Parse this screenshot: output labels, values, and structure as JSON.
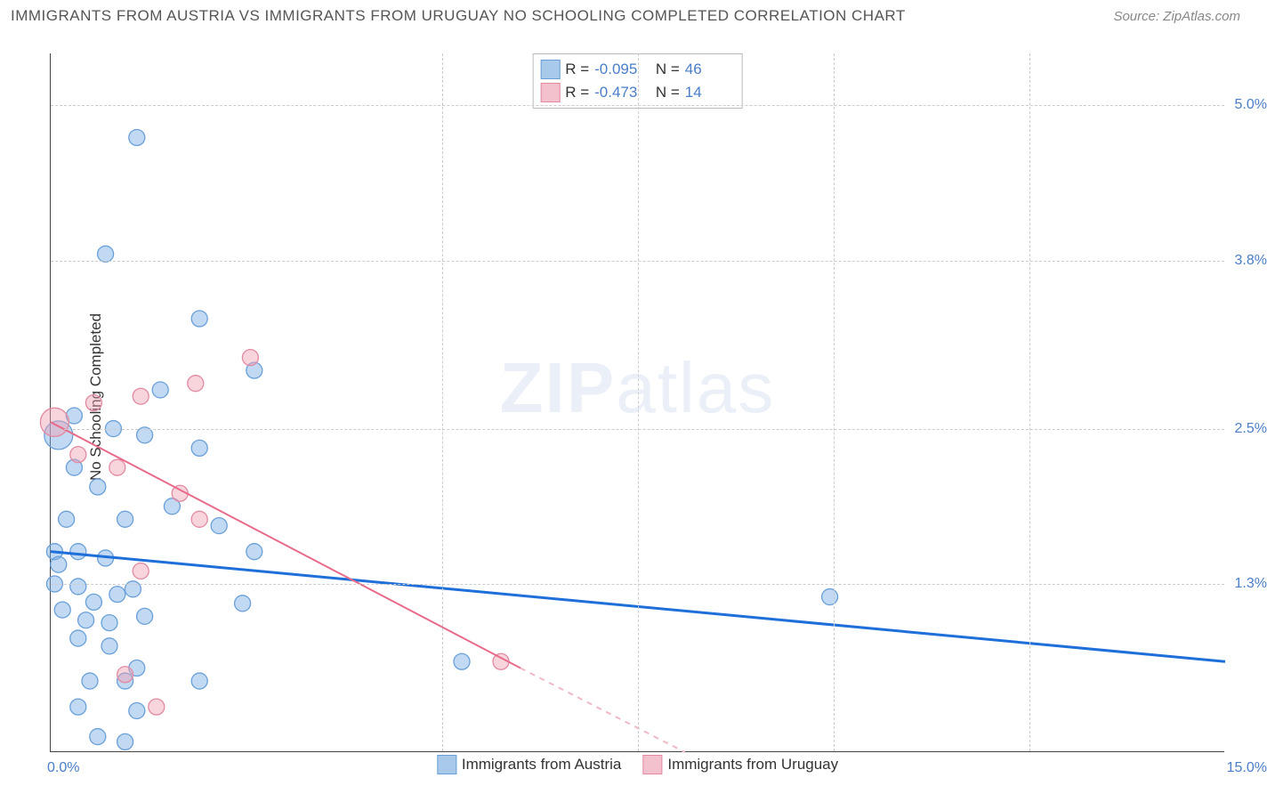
{
  "title": "IMMIGRANTS FROM AUSTRIA VS IMMIGRANTS FROM URUGUAY NO SCHOOLING COMPLETED CORRELATION CHART",
  "source": "Source: ZipAtlas.com",
  "y_axis_title": "No Schooling Completed",
  "watermark_bold": "ZIP",
  "watermark_rest": "atlas",
  "chart": {
    "type": "scatter",
    "xlim": [
      0.0,
      15.0
    ],
    "ylim": [
      0.0,
      5.4
    ],
    "x_ticks": [
      0.0,
      15.0
    ],
    "x_tick_labels": [
      "0.0%",
      "15.0%"
    ],
    "y_gridlines": [
      1.3,
      2.5,
      3.8,
      5.0
    ],
    "y_tick_labels": [
      "1.3%",
      "2.5%",
      "3.8%",
      "5.0%"
    ],
    "x_gridlines_pct": [
      33.3,
      50.0,
      66.7,
      83.3
    ],
    "background_color": "#ffffff",
    "grid_color": "#cccccc",
    "axis_color": "#444444",
    "tick_label_color": "#4a7ec9",
    "tick_fontsize": 16,
    "title_fontsize": 17,
    "title_color": "#555555"
  },
  "series": {
    "austria": {
      "label": "Immigrants from Austria",
      "color_fill": "rgba(120,170,230,0.45)",
      "color_stroke": "#6aa0d8",
      "swatch_fill": "#a9c9ea",
      "swatch_border": "#6aa0d8",
      "trend_color": "#1e6fd9",
      "trend_width": 3,
      "marker_radius": 9,
      "R_label": "R =",
      "R": "-0.095",
      "N_label": "N =",
      "N": "46",
      "trend": {
        "x1": 0.0,
        "y1": 1.55,
        "x2": 15.0,
        "y2": 0.7
      },
      "points": [
        {
          "x": 1.1,
          "y": 4.75
        },
        {
          "x": 0.7,
          "y": 3.85
        },
        {
          "x": 1.9,
          "y": 3.35
        },
        {
          "x": 2.6,
          "y": 2.95
        },
        {
          "x": 1.4,
          "y": 2.8
        },
        {
          "x": 0.3,
          "y": 2.6
        },
        {
          "x": 0.1,
          "y": 2.45,
          "r": 16
        },
        {
          "x": 0.8,
          "y": 2.5
        },
        {
          "x": 1.2,
          "y": 2.45
        },
        {
          "x": 1.9,
          "y": 2.35
        },
        {
          "x": 0.3,
          "y": 2.2
        },
        {
          "x": 0.6,
          "y": 2.05
        },
        {
          "x": 0.2,
          "y": 1.8
        },
        {
          "x": 0.95,
          "y": 1.8
        },
        {
          "x": 1.55,
          "y": 1.9
        },
        {
          "x": 2.15,
          "y": 1.75
        },
        {
          "x": 0.05,
          "y": 1.55
        },
        {
          "x": 0.1,
          "y": 1.45
        },
        {
          "x": 0.35,
          "y": 1.55
        },
        {
          "x": 0.7,
          "y": 1.5
        },
        {
          "x": 2.6,
          "y": 1.55
        },
        {
          "x": 0.05,
          "y": 1.3
        },
        {
          "x": 0.35,
          "y": 1.28
        },
        {
          "x": 0.55,
          "y": 1.16
        },
        {
          "x": 0.85,
          "y": 1.22
        },
        {
          "x": 1.05,
          "y": 1.26
        },
        {
          "x": 0.15,
          "y": 1.1
        },
        {
          "x": 0.45,
          "y": 1.02
        },
        {
          "x": 0.75,
          "y": 1.0
        },
        {
          "x": 1.2,
          "y": 1.05
        },
        {
          "x": 2.45,
          "y": 1.15
        },
        {
          "x": 9.95,
          "y": 1.2
        },
        {
          "x": 0.35,
          "y": 0.88
        },
        {
          "x": 0.75,
          "y": 0.82
        },
        {
          "x": 1.1,
          "y": 0.65
        },
        {
          "x": 0.5,
          "y": 0.55
        },
        {
          "x": 0.95,
          "y": 0.55
        },
        {
          "x": 1.9,
          "y": 0.55
        },
        {
          "x": 5.25,
          "y": 0.7
        },
        {
          "x": 0.35,
          "y": 0.35
        },
        {
          "x": 1.1,
          "y": 0.32
        },
        {
          "x": 0.6,
          "y": 0.12
        },
        {
          "x": 0.95,
          "y": 0.08
        }
      ]
    },
    "uruguay": {
      "label": "Immigrants from Uruguay",
      "color_fill": "rgba(240,160,180,0.45)",
      "color_stroke": "#e28aa0",
      "swatch_fill": "#f3c1cd",
      "swatch_border": "#e28aa0",
      "trend_color": "#e86b8a",
      "trend_width": 2,
      "trend_dash_color": "#f0b8c4",
      "marker_radius": 9,
      "R_label": "R =",
      "R": "-0.473",
      "N_label": "N =",
      "N": "14",
      "trend_solid": {
        "x1": 0.0,
        "y1": 2.55,
        "x2": 6.0,
        "y2": 0.65
      },
      "trend_dash": {
        "x1": 6.0,
        "y1": 0.65,
        "x2": 8.1,
        "y2": 0.0
      },
      "points": [
        {
          "x": 2.55,
          "y": 3.05
        },
        {
          "x": 1.85,
          "y": 2.85
        },
        {
          "x": 1.15,
          "y": 2.75
        },
        {
          "x": 0.55,
          "y": 2.7
        },
        {
          "x": 0.05,
          "y": 2.55,
          "r": 16
        },
        {
          "x": 0.35,
          "y": 2.3
        },
        {
          "x": 0.85,
          "y": 2.2
        },
        {
          "x": 1.65,
          "y": 2.0
        },
        {
          "x": 1.9,
          "y": 1.8
        },
        {
          "x": 1.15,
          "y": 1.4
        },
        {
          "x": 5.75,
          "y": 0.7
        },
        {
          "x": 1.35,
          "y": 0.35
        },
        {
          "x": 0.95,
          "y": 0.6
        }
      ]
    }
  }
}
